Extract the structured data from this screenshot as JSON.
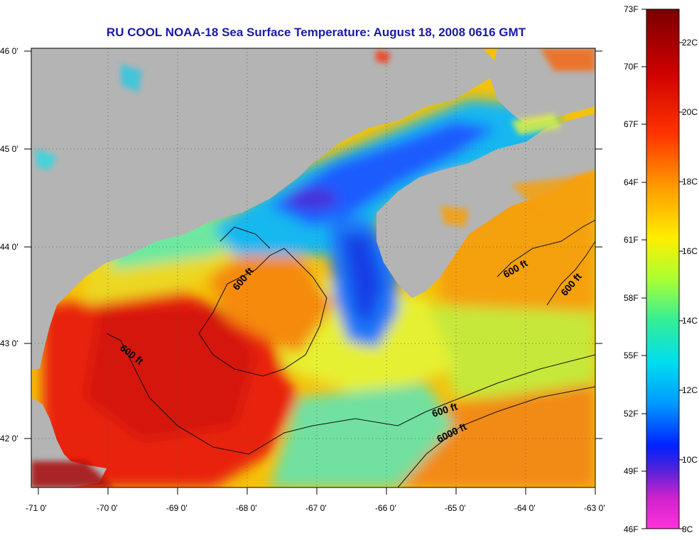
{
  "title": "RU COOL  NOAA-18  Sea Surface Temperature:  August 18, 2008 0616 GMT",
  "longitude_ticks": [
    "-71 0'",
    "-70 0'",
    "-69 0'",
    "-68 0'",
    "-67 0'",
    "-66 0'",
    "-65 0'",
    "-64 0'",
    "-63 0'"
  ],
  "latitude_ticks": [
    "46 0'",
    "45 0'",
    "44 0'",
    "43 0'",
    "42 0'"
  ],
  "contour_labels": [
    "600 ft",
    "600 ft",
    "600 ft",
    "600 ft",
    "600 ft",
    "6000 ft"
  ],
  "colorbar": {
    "fahrenheit_labels": [
      "73F",
      "70F",
      "67F",
      "64F",
      "61F",
      "58F",
      "55F",
      "52F",
      "49F",
      "46F"
    ],
    "celsius_labels": [
      "22C",
      "20C",
      "18C",
      "16C",
      "14C",
      "12C",
      "10C",
      "8C"
    ]
  },
  "colors": {
    "land": "#b4b4b4",
    "title": "#1a1aa8",
    "warm": "#e81e0a",
    "cold": "#1e46ff"
  }
}
